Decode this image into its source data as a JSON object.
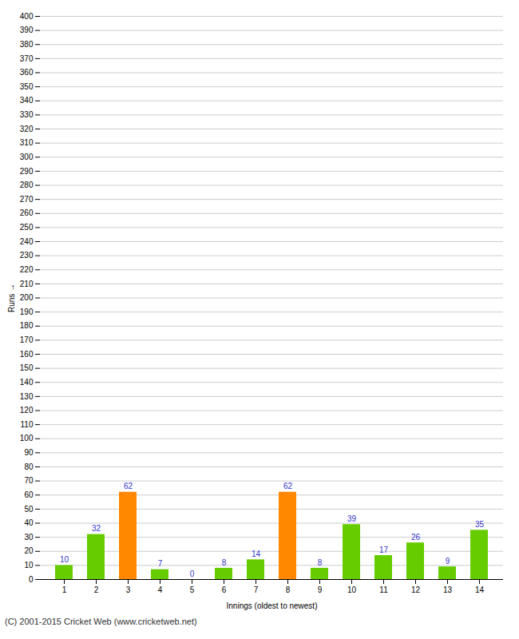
{
  "chart_data": {
    "type": "bar",
    "xlabel": "Innings (oldest to newest)",
    "ylabel": "Runs",
    "caption": "(C) 2001-2015 Cricket Web (www.cricketweb.net)",
    "categories": [
      "1",
      "2",
      "3",
      "4",
      "5",
      "6",
      "7",
      "8",
      "9",
      "10",
      "11",
      "12",
      "13",
      "14"
    ],
    "values": [
      10,
      32,
      62,
      7,
      0,
      8,
      14,
      62,
      8,
      39,
      17,
      26,
      9,
      35
    ],
    "colors": [
      "#66cc00",
      "#66cc00",
      "#ff8800",
      "#66cc00",
      "#66cc00",
      "#66cc00",
      "#66cc00",
      "#ff8800",
      "#66cc00",
      "#66cc00",
      "#66cc00",
      "#66cc00",
      "#66cc00",
      "#66cc00"
    ],
    "ylim": [
      0,
      400
    ],
    "yticks": [
      0,
      10,
      20,
      30,
      40,
      50,
      60,
      70,
      80,
      90,
      100,
      110,
      120,
      130,
      140,
      150,
      160,
      170,
      180,
      190,
      200,
      210,
      220,
      230,
      240,
      250,
      260,
      270,
      280,
      290,
      300,
      310,
      320,
      330,
      340,
      350,
      360,
      370,
      380,
      390,
      400
    ],
    "grid": true,
    "data_labels": true
  }
}
